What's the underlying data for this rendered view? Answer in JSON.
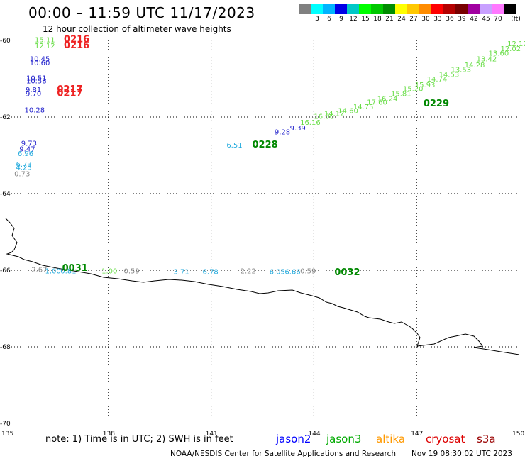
{
  "header": {
    "title": "00:00 – 11:59 UTC 11/17/2023",
    "subtitle": "12 hour collection of altimeter wave heights"
  },
  "legend": {
    "unit": "(ft)",
    "bins": [
      {
        "color": "#808080",
        "label": ""
      },
      {
        "color": "#00ffff",
        "label": "3"
      },
      {
        "color": "#00b4ff",
        "label": "6"
      },
      {
        "color": "#0000e6",
        "label": "9"
      },
      {
        "color": "#00c8c8",
        "label": "12"
      },
      {
        "color": "#00ff00",
        "label": "15"
      },
      {
        "color": "#00c800",
        "label": "18"
      },
      {
        "color": "#008c00",
        "label": "21"
      },
      {
        "color": "#ffff00",
        "label": "24"
      },
      {
        "color": "#ffc800",
        "label": "27"
      },
      {
        "color": "#ff8c00",
        "label": "30"
      },
      {
        "color": "#ff0000",
        "label": "33"
      },
      {
        "color": "#b40000",
        "label": "36"
      },
      {
        "color": "#780000",
        "label": "39"
      },
      {
        "color": "#a000a0",
        "label": "42"
      },
      {
        "color": "#c8a0ff",
        "label": "45"
      },
      {
        "color": "#ff78ff",
        "label": "70"
      },
      {
        "color": "#000000",
        "label": ""
      }
    ]
  },
  "axes": {
    "lat_labels": [
      "-60",
      "-62",
      "-64",
      "-66",
      "-68",
      "-70"
    ],
    "lon_labels": [
      "135",
      "138",
      "141",
      "144",
      "147",
      "150"
    ]
  },
  "observations": [
    {
      "text": "15.11",
      "color": "#66dd44",
      "lon": 135.85,
      "lat": -60.05
    },
    {
      "text": "12.12",
      "color": "#66dd44",
      "lon": 135.85,
      "lat": -60.2
    },
    {
      "text": "10.45",
      "color": "#2222cc",
      "lon": 135.7,
      "lat": -60.55
    },
    {
      "text": "10.60",
      "color": "#2222cc",
      "lon": 135.7,
      "lat": -60.65
    },
    {
      "text": "10.51",
      "color": "#2222cc",
      "lon": 135.6,
      "lat": -61.05
    },
    {
      "text": "10.58",
      "color": "#2222cc",
      "lon": 135.6,
      "lat": -61.12
    },
    {
      "text": "9.81",
      "color": "#2222cc",
      "lon": 135.58,
      "lat": -61.35
    },
    {
      "text": "9.70",
      "color": "#2222cc",
      "lon": 135.58,
      "lat": -61.45
    },
    {
      "text": "10.28",
      "color": "#2222cc",
      "lon": 135.55,
      "lat": -61.88
    },
    {
      "text": "9.73",
      "color": "#2222cc",
      "lon": 135.45,
      "lat": -62.75
    },
    {
      "text": "9.47",
      "color": "#2222cc",
      "lon": 135.4,
      "lat": -62.9
    },
    {
      "text": "6.96",
      "color": "#22aadd",
      "lon": 135.35,
      "lat": -63.02
    },
    {
      "text": "6.73",
      "color": "#22aadd",
      "lon": 135.3,
      "lat": -63.3
    },
    {
      "text": "4.23",
      "color": "#22aadd",
      "lon": 135.3,
      "lat": -63.38
    },
    {
      "text": "0.73",
      "color": "#888888",
      "lon": 135.25,
      "lat": -63.55
    },
    {
      "text": "6.51",
      "color": "#22aadd",
      "lon": 141.45,
      "lat": -62.8
    },
    {
      "text": "9.28",
      "color": "#2222cc",
      "lon": 142.85,
      "lat": -62.45
    },
    {
      "text": "9.39",
      "color": "#2222cc",
      "lon": 143.3,
      "lat": -62.35
    },
    {
      "text": "16.16",
      "color": "#66dd44",
      "lon": 143.6,
      "lat": -62.2
    },
    {
      "text": "16.00",
      "color": "#66dd44",
      "lon": 144.0,
      "lat": -62.05
    },
    {
      "text": "14.12",
      "color": "#66dd44",
      "lon": 144.3,
      "lat": -61.97
    },
    {
      "text": "14.60",
      "color": "#66dd44",
      "lon": 144.7,
      "lat": -61.9
    },
    {
      "text": "14.75",
      "color": "#66dd44",
      "lon": 145.15,
      "lat": -61.8
    },
    {
      "text": "17.60",
      "color": "#66dd44",
      "lon": 145.55,
      "lat": -61.68
    },
    {
      "text": "16.24",
      "color": "#66dd44",
      "lon": 145.85,
      "lat": -61.58
    },
    {
      "text": "15.81",
      "color": "#66dd44",
      "lon": 146.25,
      "lat": -61.45
    },
    {
      "text": "15.20",
      "color": "#66dd44",
      "lon": 146.6,
      "lat": -61.32
    },
    {
      "text": "15.93",
      "color": "#66dd44",
      "lon": 146.95,
      "lat": -61.22
    },
    {
      "text": "14.74",
      "color": "#66dd44",
      "lon": 147.3,
      "lat": -61.07
    },
    {
      "text": "14.53",
      "color": "#66dd44",
      "lon": 147.65,
      "lat": -60.95
    },
    {
      "text": "13.53",
      "color": "#66dd44",
      "lon": 148.0,
      "lat": -60.82
    },
    {
      "text": "14.28",
      "color": "#66dd44",
      "lon": 148.4,
      "lat": -60.7
    },
    {
      "text": "13.42",
      "color": "#66dd44",
      "lon": 148.75,
      "lat": -60.55
    },
    {
      "text": "13.60",
      "color": "#66dd44",
      "lon": 149.1,
      "lat": -60.4
    },
    {
      "text": "12.02",
      "color": "#66dd44",
      "lon": 149.45,
      "lat": -60.28
    },
    {
      "text": "12.12",
      "color": "#66dd44",
      "lon": 149.65,
      "lat": -60.15
    },
    {
      "text": "2.67",
      "color": "#888888",
      "lon": 135.75,
      "lat": -66.05
    },
    {
      "text": "1.00",
      "color": "#22aadd",
      "lon": 136.15,
      "lat": -66.08
    },
    {
      "text": "0.81",
      "color": "#22aadd",
      "lon": 136.6,
      "lat": -66.08
    },
    {
      "text": "1.00",
      "color": "#66dd44",
      "lon": 137.8,
      "lat": -66.08
    },
    {
      "text": "0.59",
      "color": "#888888",
      "lon": 138.45,
      "lat": -66.08
    },
    {
      "text": "3.71",
      "color": "#22aadd",
      "lon": 139.9,
      "lat": -66.1
    },
    {
      "text": "6.78",
      "color": "#22aadd",
      "lon": 140.75,
      "lat": -66.1
    },
    {
      "text": "2.22",
      "color": "#888888",
      "lon": 141.85,
      "lat": -66.08
    },
    {
      "text": "6.05",
      "color": "#22aadd",
      "lon": 142.7,
      "lat": -66.1
    },
    {
      "text": "6.66",
      "color": "#22aadd",
      "lon": 143.15,
      "lat": -66.1
    },
    {
      "text": "0.59",
      "color": "#888888",
      "lon": 143.6,
      "lat": -66.08
    }
  ],
  "times": [
    {
      "text": "0216",
      "color": "#ee2222",
      "lon": 136.7,
      "lat": -60.05
    },
    {
      "text": "0216",
      "color": "#ee2222",
      "lon": 136.7,
      "lat": -60.2
    },
    {
      "text": "0217",
      "color": "#ee2222",
      "lon": 136.5,
      "lat": -61.35
    },
    {
      "text": "0217",
      "color": "#ee2222",
      "lon": 136.5,
      "lat": -61.45
    },
    {
      "text": "0228",
      "color": "#008800",
      "lon": 142.2,
      "lat": -62.8
    },
    {
      "text": "0229",
      "color": "#008800",
      "lon": 147.2,
      "lat": -61.72
    },
    {
      "text": "0031",
      "color": "#008800",
      "lon": 136.65,
      "lat": -66.02
    },
    {
      "text": "0032",
      "color": "#008800",
      "lon": 144.6,
      "lat": -66.13
    }
  ],
  "footer": {
    "note": "note: 1) Time is in UTC; 2) SWH is in feet",
    "satellites": [
      {
        "name": "jason2",
        "color": "#0000ff"
      },
      {
        "name": "jason3",
        "color": "#00aa00"
      },
      {
        "name": "altika",
        "color": "#ff9900"
      },
      {
        "name": "cryosat",
        "color": "#dd0000"
      },
      {
        "name": "s3a",
        "color": "#990000"
      }
    ],
    "credit": "NOAA/NESDIS Center for Satellite Applications and Research",
    "timestamp": "Nov 19 08:30:02 UTC 2023"
  }
}
